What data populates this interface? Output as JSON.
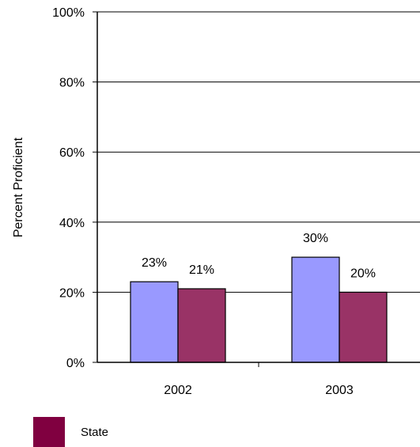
{
  "chart_data": {
    "type": "bar",
    "categories": [
      "2002",
      "2003"
    ],
    "series": [
      {
        "values": [
          23,
          30
        ],
        "color": "#9999ff",
        "labels": [
          "23%",
          "30%"
        ]
      },
      {
        "name": "State",
        "values": [
          21,
          20
        ],
        "color": "#993366",
        "labels": [
          "21%",
          "20%"
        ]
      }
    ],
    "ylabel": "Percent Proficient",
    "ylim": [
      0,
      100
    ],
    "yticks": [
      0,
      20,
      40,
      60,
      80,
      100
    ],
    "ytick_labels": [
      "0%",
      "20%",
      "40%",
      "60%",
      "80%",
      "100%"
    ],
    "grid": true,
    "legend": {
      "placement": "bottom-left",
      "items": [
        {
          "label": "State",
          "color": "#800040"
        }
      ]
    }
  }
}
